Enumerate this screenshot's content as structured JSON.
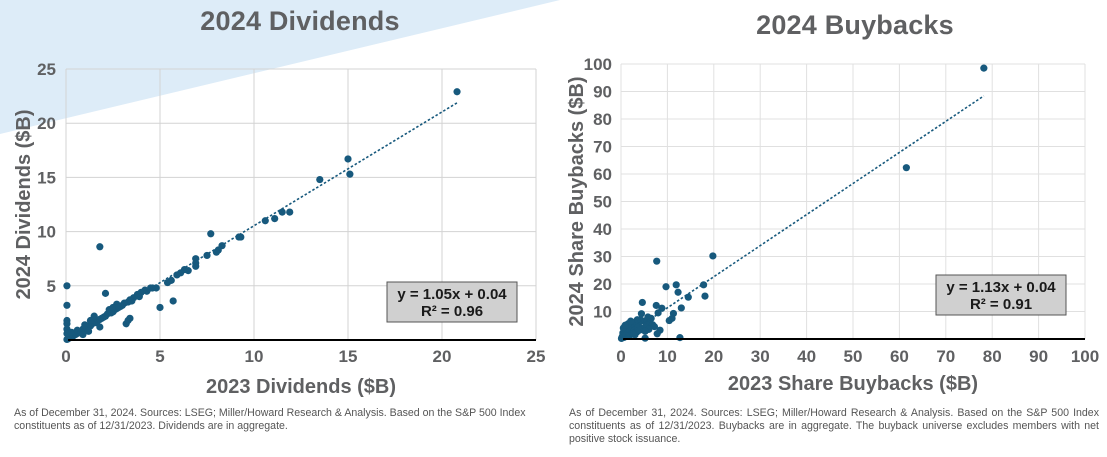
{
  "colors": {
    "point": "#17597d",
    "trendline": "#17597d",
    "grid": "#d3d3d3",
    "text": "#5f6062",
    "equation_box": "#d0d0d0",
    "background_accent": "#ddecf8"
  },
  "chart_data": [
    {
      "type": "scatter",
      "title": "2024 Dividends",
      "xlabel": "2023 Dividends ($B)",
      "ylabel": "2024 Dividends ($B)",
      "xlim": [
        0,
        25
      ],
      "ylim": [
        0,
        25
      ],
      "xticks": [
        "0",
        "5",
        "10",
        "15",
        "20",
        "25"
      ],
      "yticks": [
        "5",
        "10",
        "15",
        "20",
        "25"
      ],
      "xtick_values": [
        0,
        5,
        10,
        15,
        20,
        25
      ],
      "ytick_values": [
        5,
        10,
        15,
        20,
        25
      ],
      "grid": true,
      "trendline": {
        "slope": 1.05,
        "intercept": 0.04,
        "x_range": [
          0,
          20.8
        ],
        "style": "dotted"
      },
      "annotation": {
        "equation": "y = 1.05x + 0.04",
        "r_squared": "R² = 0.96",
        "position": "bottom-right"
      },
      "points": [
        [
          20.8,
          22.9
        ],
        [
          15.0,
          16.7
        ],
        [
          15.1,
          15.3
        ],
        [
          13.5,
          14.8
        ],
        [
          11.9,
          11.8
        ],
        [
          11.5,
          11.8
        ],
        [
          11.1,
          11.2
        ],
        [
          10.6,
          11.0
        ],
        [
          9.3,
          9.5
        ],
        [
          9.2,
          9.5
        ],
        [
          8.3,
          8.7
        ],
        [
          8.1,
          8.3
        ],
        [
          8.0,
          8.1
        ],
        [
          7.7,
          9.8
        ],
        [
          7.5,
          7.8
        ],
        [
          6.9,
          7.5
        ],
        [
          6.9,
          7.1
        ],
        [
          6.9,
          6.8
        ],
        [
          6.5,
          6.4
        ],
        [
          6.3,
          6.5
        ],
        [
          6.1,
          6.2
        ],
        [
          5.9,
          6.0
        ],
        [
          5.6,
          5.5
        ],
        [
          5.4,
          5.3
        ],
        [
          5.7,
          3.6
        ],
        [
          5.0,
          3.0
        ],
        [
          4.8,
          4.8
        ],
        [
          4.6,
          4.8
        ],
        [
          4.5,
          4.8
        ],
        [
          4.2,
          4.6
        ],
        [
          4.0,
          4.4
        ],
        [
          3.8,
          4.2
        ],
        [
          3.6,
          3.9
        ],
        [
          3.4,
          3.7
        ],
        [
          3.3,
          3.5
        ],
        [
          3.1,
          3.4
        ],
        [
          3.0,
          3.2
        ],
        [
          2.9,
          3.1
        ],
        [
          2.7,
          2.9
        ],
        [
          2.6,
          2.8
        ],
        [
          2.5,
          2.6
        ],
        [
          2.4,
          2.5
        ],
        [
          2.2,
          2.4
        ],
        [
          2.1,
          2.2
        ],
        [
          2.0,
          2.1
        ],
        [
          1.9,
          2.0
        ],
        [
          1.8,
          1.9
        ],
        [
          1.7,
          1.8
        ],
        [
          1.6,
          1.6
        ],
        [
          1.5,
          1.6
        ],
        [
          1.4,
          1.5
        ],
        [
          1.3,
          1.3
        ],
        [
          1.2,
          1.3
        ],
        [
          1.1,
          1.2
        ],
        [
          1.0,
          1.0
        ],
        [
          0.9,
          1.0
        ],
        [
          0.8,
          0.8
        ],
        [
          0.7,
          0.8
        ],
        [
          0.6,
          0.6
        ],
        [
          0.5,
          0.5
        ],
        [
          0.4,
          0.4
        ],
        [
          0.3,
          0.3
        ],
        [
          0.2,
          0.2
        ],
        [
          0.1,
          0.1
        ],
        [
          0.05,
          0.05
        ],
        [
          1.5,
          2.2
        ],
        [
          1.8,
          1.2
        ],
        [
          1.2,
          0.8
        ],
        [
          0.9,
          0.5
        ],
        [
          2.3,
          2.8
        ],
        [
          2.7,
          3.3
        ],
        [
          3.2,
          1.5
        ],
        [
          3.4,
          2.0
        ],
        [
          3.3,
          1.8
        ],
        [
          1.8,
          8.6
        ],
        [
          2.1,
          4.3
        ],
        [
          0.05,
          5.0
        ],
        [
          0.05,
          3.2
        ],
        [
          0.05,
          1.8
        ],
        [
          0.05,
          1.5
        ],
        [
          0.05,
          1.0
        ],
        [
          0.05,
          0.6
        ],
        [
          0.3,
          0.7
        ],
        [
          0.6,
          0.9
        ],
        [
          1.0,
          1.4
        ],
        [
          1.3,
          1.8
        ],
        [
          2.5,
          3.0
        ],
        [
          2.8,
          3.0
        ],
        [
          3.5,
          3.6
        ],
        [
          3.9,
          4.0
        ],
        [
          4.3,
          4.5
        ]
      ]
    },
    {
      "type": "scatter",
      "title": "2024 Buybacks",
      "xlabel": "2023 Share Buybacks ($B)",
      "ylabel": "2024 Share Buybacks ($B)",
      "xlim": [
        0,
        100
      ],
      "ylim": [
        0,
        100
      ],
      "xticks": [
        "0",
        "10",
        "20",
        "30",
        "40",
        "50",
        "60",
        "70",
        "80",
        "90",
        "100"
      ],
      "yticks": [
        "10",
        "20",
        "30",
        "40",
        "50",
        "60",
        "70",
        "80",
        "90",
        "100"
      ],
      "xtick_values": [
        0,
        10,
        20,
        30,
        40,
        50,
        60,
        70,
        80,
        90,
        100
      ],
      "ytick_values": [
        10,
        20,
        30,
        40,
        50,
        60,
        70,
        80,
        90,
        100
      ],
      "grid": true,
      "trendline": {
        "slope": 1.13,
        "intercept": 0.04,
        "x_range": [
          0,
          78.2
        ],
        "style": "dotted"
      },
      "annotation": {
        "equation": "y = 1.13x + 0.04",
        "r_squared": "R² = 0.91",
        "position": "bottom-right"
      },
      "points": [
        [
          78.2,
          98.5
        ],
        [
          61.5,
          62.3
        ],
        [
          19.8,
          30.2
        ],
        [
          7.7,
          28.3
        ],
        [
          17.8,
          19.7
        ],
        [
          18.1,
          15.6
        ],
        [
          11.9,
          19.7
        ],
        [
          12.3,
          17.0
        ],
        [
          9.7,
          19.0
        ],
        [
          14.5,
          15.2
        ],
        [
          13.0,
          11.3
        ],
        [
          8.8,
          11.2
        ],
        [
          7.6,
          12.2
        ],
        [
          4.6,
          13.3
        ],
        [
          11.3,
          9.3
        ],
        [
          10.4,
          6.7
        ],
        [
          11.0,
          7.5
        ],
        [
          8.4,
          3.2
        ],
        [
          7.8,
          1.9
        ],
        [
          12.7,
          0.5
        ],
        [
          5.2,
          0.3
        ],
        [
          8.0,
          9.5
        ],
        [
          6.5,
          7.5
        ],
        [
          5.8,
          8.0
        ],
        [
          5.0,
          6.5
        ],
        [
          4.4,
          9.2
        ],
        [
          4.2,
          7.0
        ],
        [
          3.8,
          5.8
        ],
        [
          3.5,
          7.0
        ],
        [
          3.2,
          5.0
        ],
        [
          2.9,
          6.0
        ],
        [
          2.6,
          4.5
        ],
        [
          2.4,
          5.5
        ],
        [
          2.2,
          3.8
        ],
        [
          2.0,
          4.8
        ],
        [
          1.8,
          3.0
        ],
        [
          1.6,
          4.2
        ],
        [
          1.4,
          2.5
        ],
        [
          1.2,
          3.5
        ],
        [
          1.0,
          2.0
        ],
        [
          0.8,
          3.0
        ],
        [
          0.6,
          1.5
        ],
        [
          0.4,
          2.2
        ],
        [
          0.3,
          1.0
        ],
        [
          0.2,
          0.5
        ],
        [
          0.1,
          0.2
        ],
        [
          0.5,
          4.0
        ],
        [
          1.5,
          5.5
        ],
        [
          2.8,
          3.0
        ],
        [
          3.4,
          2.5
        ],
        [
          4.8,
          4.0
        ],
        [
          5.5,
          5.0
        ],
        [
          6.2,
          6.0
        ],
        [
          6.8,
          5.2
        ],
        [
          7.2,
          4.5
        ],
        [
          6.0,
          3.5
        ],
        [
          3.0,
          1.5
        ],
        [
          1.8,
          1.0
        ],
        [
          0.7,
          0.6
        ],
        [
          4.0,
          3.2
        ],
        [
          5.2,
          2.8
        ],
        [
          2.1,
          6.5
        ],
        [
          3.6,
          4.2
        ],
        [
          0.9,
          5.0
        ],
        [
          1.1,
          1.2
        ],
        [
          2.5,
          2.0
        ]
      ]
    }
  ],
  "footnotes": {
    "dividends": "As of December 31, 2024. Sources: LSEG; Miller/Howard Research & Analysis. Based on the S&P 500 Index constituents as of 12/31/2023. Dividends are in aggregate.",
    "buybacks": "As of December 31, 2024. Sources: LSEG; Miller/Howard Research & Analysis. Based on the S&P 500 Index constituents as of 12/31/2023. Buybacks are in aggregate. The buyback universe excludes members with net positive stock issuance."
  }
}
